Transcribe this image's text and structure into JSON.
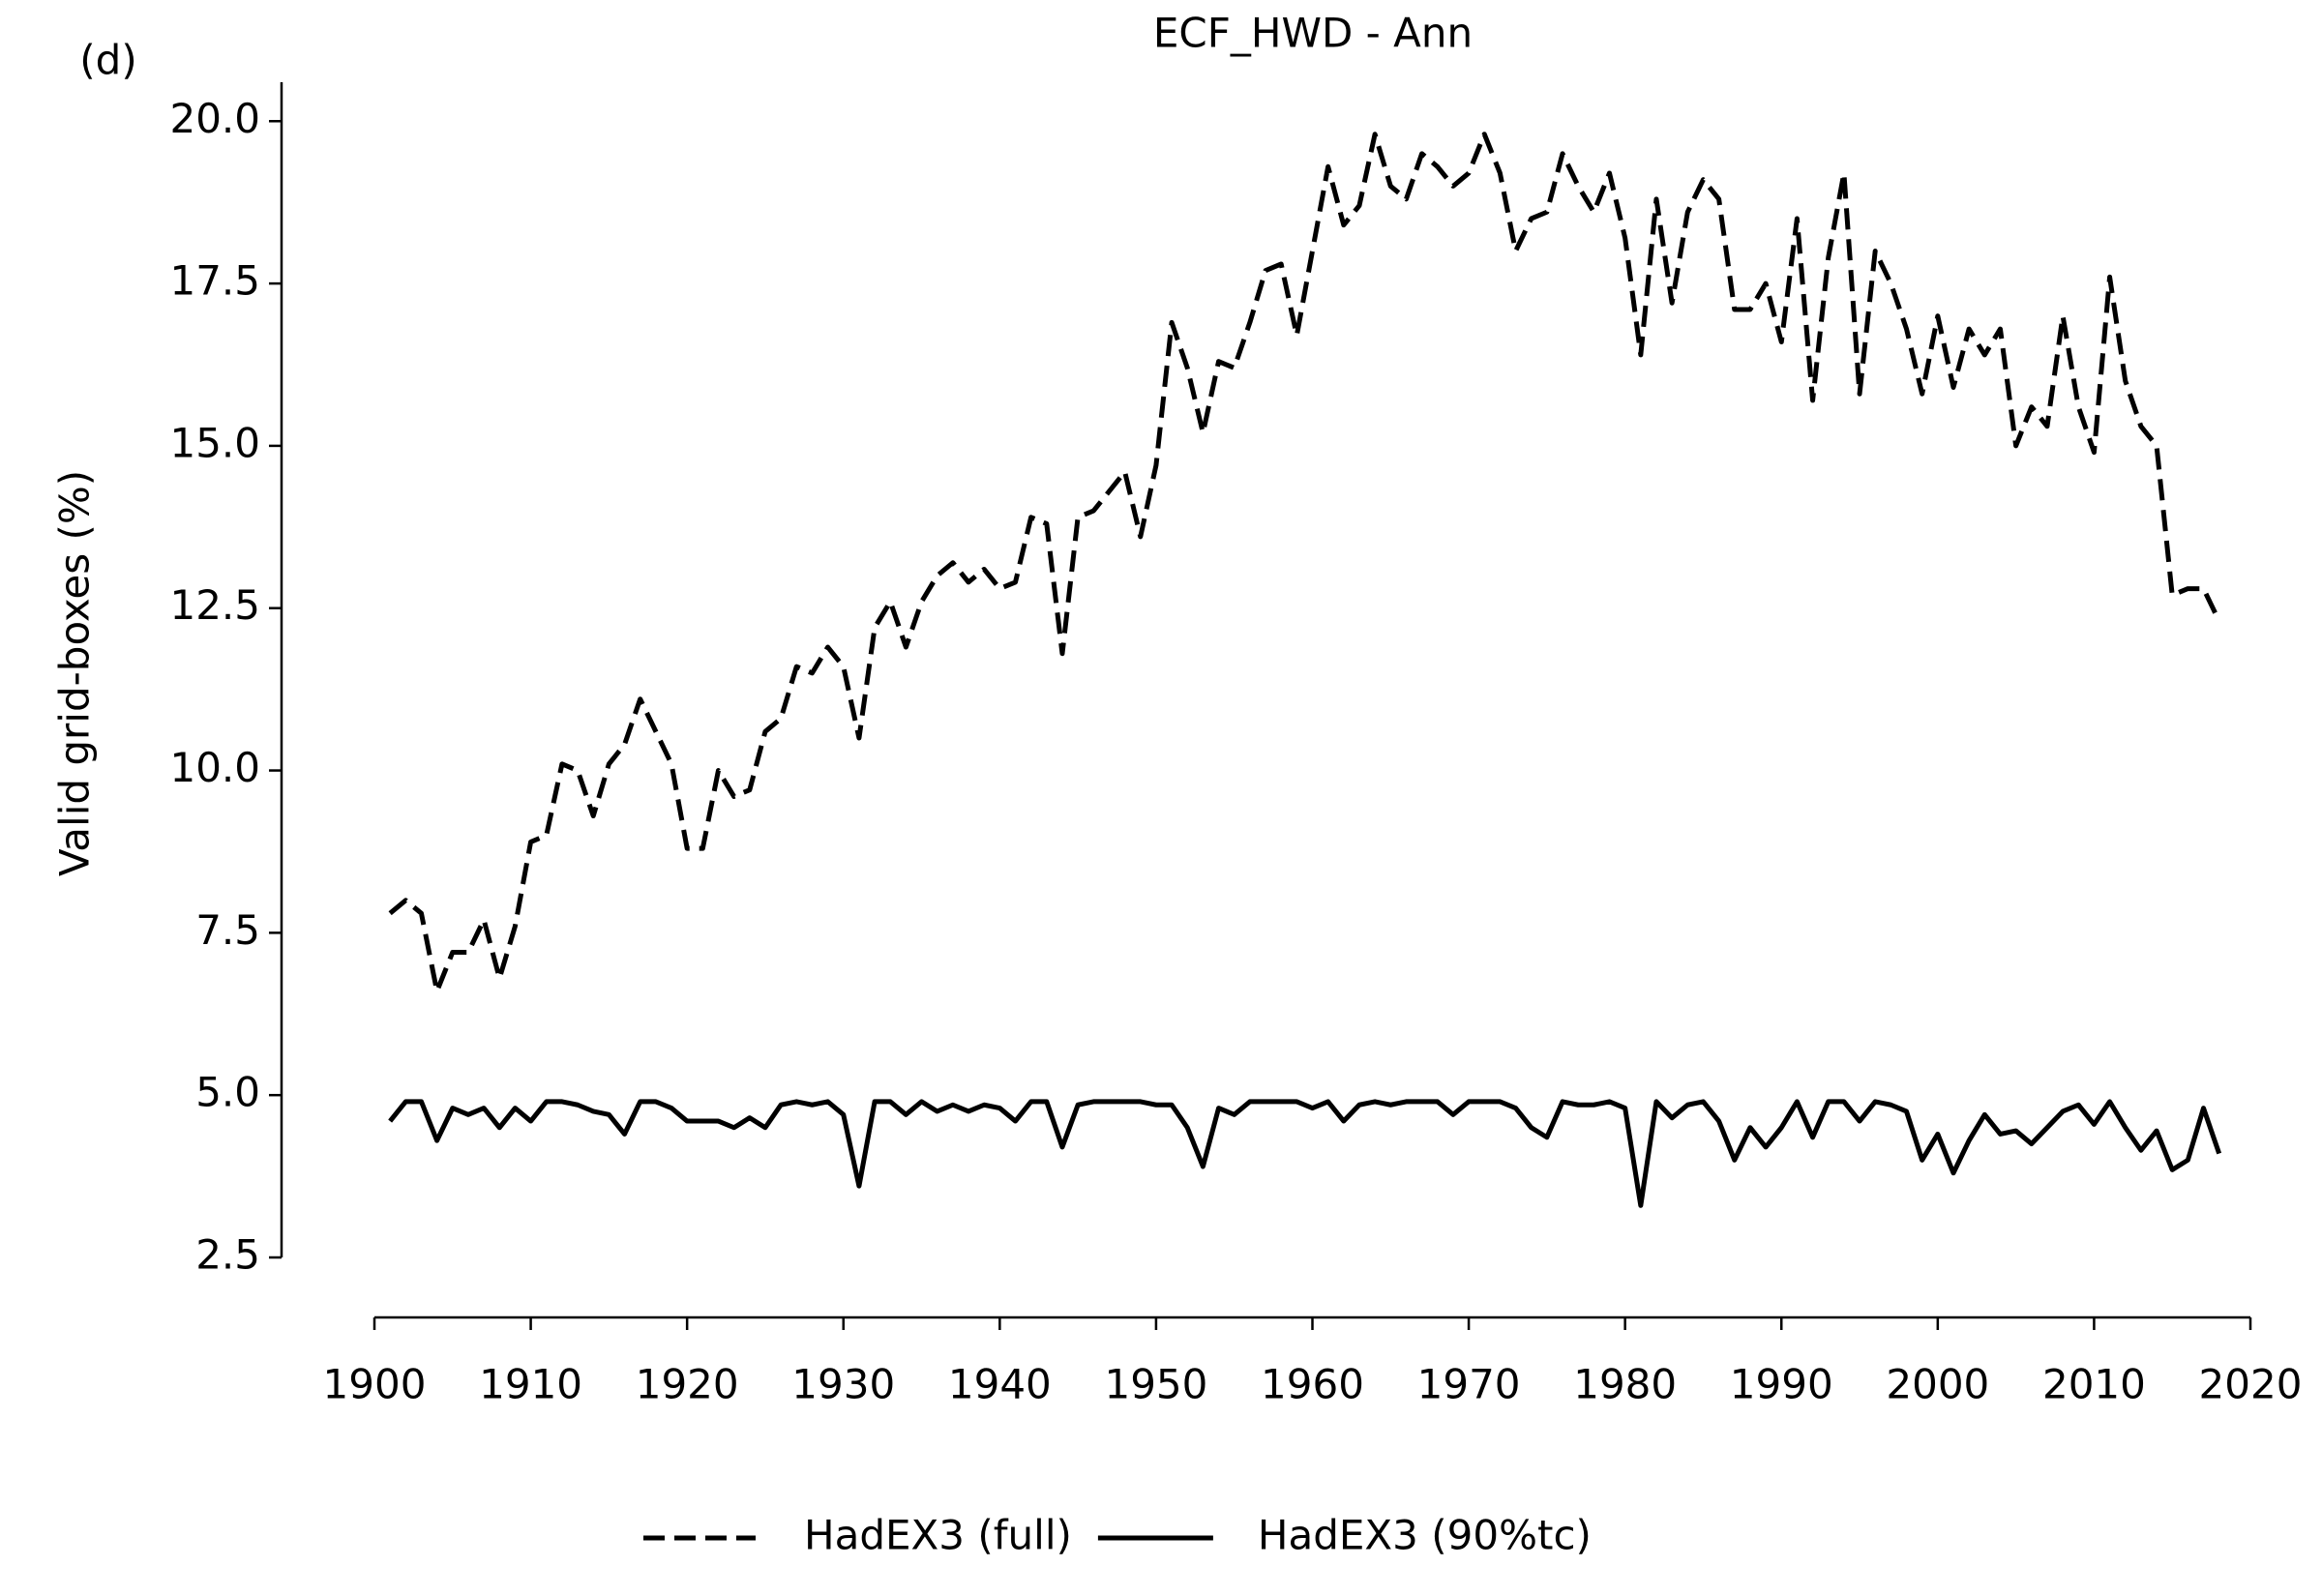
{
  "chart_data": {
    "type": "line",
    "title": "ECF_HWD - Ann",
    "panel_label": "(d)",
    "y_label": "Valid grid-boxes (%)",
    "x": [
      1901,
      1902,
      1903,
      1904,
      1905,
      1906,
      1907,
      1908,
      1909,
      1910,
      1911,
      1912,
      1913,
      1914,
      1915,
      1916,
      1917,
      1918,
      1919,
      1920,
      1921,
      1922,
      1923,
      1924,
      1925,
      1926,
      1927,
      1928,
      1929,
      1930,
      1931,
      1932,
      1933,
      1934,
      1935,
      1936,
      1937,
      1938,
      1939,
      1940,
      1941,
      1942,
      1943,
      1944,
      1945,
      1946,
      1947,
      1948,
      1949,
      1950,
      1951,
      1952,
      1953,
      1954,
      1955,
      1956,
      1957,
      1958,
      1959,
      1960,
      1961,
      1962,
      1963,
      1964,
      1965,
      1966,
      1967,
      1968,
      1969,
      1970,
      1971,
      1972,
      1973,
      1974,
      1975,
      1976,
      1977,
      1978,
      1979,
      1980,
      1981,
      1982,
      1983,
      1984,
      1985,
      1986,
      1987,
      1988,
      1989,
      1990,
      1991,
      1992,
      1993,
      1994,
      1995,
      1996,
      1997,
      1998,
      1999,
      2000,
      2001,
      2002,
      2003,
      2004,
      2005,
      2006,
      2007,
      2008,
      2009,
      2010,
      2011,
      2012,
      2013,
      2014,
      2015,
      2016,
      2017,
      2018
    ],
    "series": [
      {
        "name": "HadEX3 (full)",
        "color": "#000000",
        "linestyle": "dashed",
        "values": [
          7.8,
          8.0,
          7.8,
          6.6,
          7.2,
          7.2,
          7.7,
          6.8,
          7.6,
          8.9,
          9.0,
          10.1,
          10.0,
          9.3,
          10.1,
          10.4,
          11.1,
          10.6,
          10.1,
          8.8,
          8.8,
          10.0,
          9.6,
          9.7,
          10.6,
          10.8,
          11.6,
          11.5,
          11.9,
          11.6,
          10.5,
          12.2,
          12.6,
          11.9,
          12.6,
          13.0,
          13.2,
          12.9,
          13.1,
          12.8,
          12.9,
          13.9,
          13.8,
          11.8,
          13.9,
          14.0,
          14.3,
          14.6,
          13.6,
          14.7,
          16.9,
          16.2,
          15.2,
          16.3,
          16.2,
          16.9,
          17.7,
          17.8,
          16.7,
          18.0,
          19.3,
          18.4,
          18.7,
          19.8,
          19.0,
          18.8,
          19.5,
          19.3,
          19.0,
          19.2,
          19.8,
          19.2,
          18.0,
          18.5,
          18.6,
          19.5,
          19.0,
          18.6,
          19.2,
          18.2,
          16.4,
          18.8,
          17.2,
          18.6,
          19.1,
          18.8,
          17.1,
          17.1,
          17.5,
          16.6,
          18.5,
          15.7,
          17.9,
          19.2,
          15.8,
          18.0,
          17.5,
          16.8,
          15.8,
          17.0,
          15.9,
          16.8,
          16.4,
          16.8,
          15.0,
          15.6,
          15.3,
          17.0,
          15.6,
          14.9,
          17.6,
          16.0,
          15.3,
          15.0,
          12.7,
          12.8,
          12.8,
          12.3
        ]
      },
      {
        "name": "HadEX3 (90%tc)",
        "color": "#000000",
        "linestyle": "solid",
        "values": [
          4.6,
          4.9,
          4.9,
          4.3,
          4.8,
          4.7,
          4.8,
          4.5,
          4.8,
          4.6,
          4.9,
          4.9,
          4.85,
          4.75,
          4.7,
          4.4,
          4.9,
          4.9,
          4.8,
          4.6,
          4.6,
          4.6,
          4.5,
          4.65,
          4.5,
          4.85,
          4.9,
          4.85,
          4.9,
          4.7,
          3.6,
          4.9,
          4.9,
          4.7,
          4.9,
          4.75,
          4.85,
          4.75,
          4.85,
          4.8,
          4.6,
          4.9,
          4.9,
          4.2,
          4.85,
          4.9,
          4.9,
          4.9,
          4.9,
          4.85,
          4.85,
          4.5,
          3.9,
          4.8,
          4.7,
          4.9,
          4.9,
          4.9,
          4.9,
          4.8,
          4.9,
          4.6,
          4.85,
          4.9,
          4.85,
          4.9,
          4.9,
          4.9,
          4.7,
          4.9,
          4.9,
          4.9,
          4.8,
          4.5,
          4.35,
          4.9,
          4.85,
          4.85,
          4.9,
          4.8,
          3.3,
          4.9,
          4.65,
          4.85,
          4.9,
          4.6,
          4.0,
          4.5,
          4.2,
          4.5,
          4.9,
          4.35,
          4.9,
          4.9,
          4.6,
          4.9,
          4.85,
          4.75,
          4.0,
          4.4,
          3.8,
          4.3,
          4.7,
          4.4,
          4.45,
          4.25,
          4.5,
          4.75,
          4.85,
          4.55,
          4.9,
          4.5,
          4.15,
          4.45,
          3.85,
          4.0,
          4.8,
          4.1
        ]
      }
    ],
    "xlim": [
      1900,
      2020
    ],
    "xticks": [
      1900,
      1910,
      1920,
      1930,
      1940,
      1950,
      1960,
      1970,
      1980,
      1990,
      2000,
      2010,
      2020
    ],
    "ylim": [
      2.5,
      20.6
    ],
    "yticks": [
      2.5,
      {
        "value": 5,
        "label": "5.0"
      },
      7.5,
      {
        "value": 10,
        "label": "10.0"
      },
      12.5,
      {
        "value": 15,
        "label": "15.0"
      },
      17.5,
      {
        "value": 20,
        "label": "20.0"
      }
    ],
    "grid": false,
    "legend": "bottom"
  }
}
